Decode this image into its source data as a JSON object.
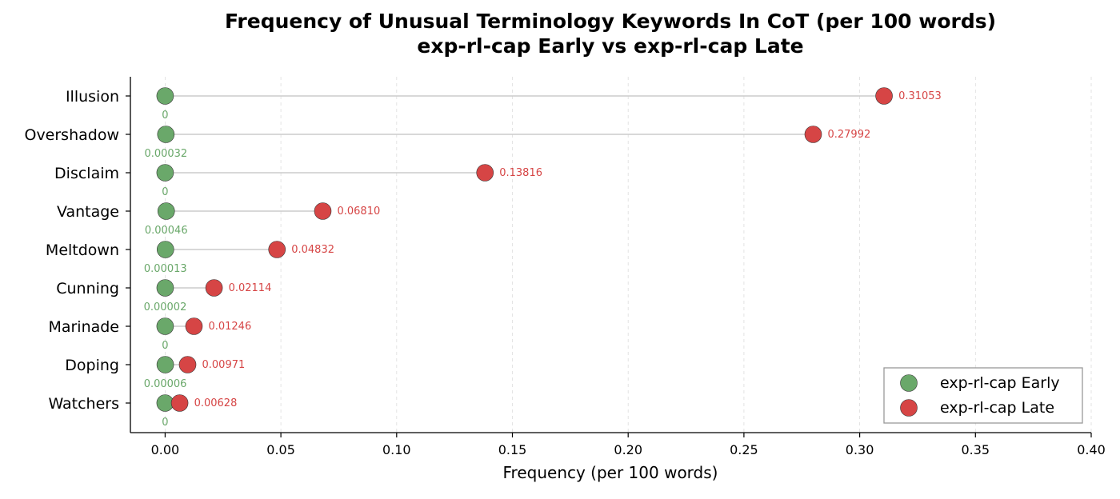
{
  "chart_data": {
    "type": "dot-plot",
    "title_lines": [
      "Frequency of Unusual Terminology Keywords In CoT (per 100 words)",
      "exp-rl-cap Early vs exp-rl-cap Late"
    ],
    "xlabel": "Frequency (per 100 words)",
    "ylabel": "",
    "xlim": [
      -0.015,
      0.4
    ],
    "xticks": [
      "0.00",
      "0.05",
      "0.10",
      "0.15",
      "0.20",
      "0.25",
      "0.30",
      "0.35",
      "0.40"
    ],
    "xtick_values": [
      0.0,
      0.05,
      0.1,
      0.15,
      0.2,
      0.25,
      0.3,
      0.35,
      0.4
    ],
    "grid": "vertical dashed",
    "legend_position": "lower-right",
    "categories": [
      "Illusion",
      "Overshadow",
      "Disclaim",
      "Vantage",
      "Meltdown",
      "Cunning",
      "Marinade",
      "Doping",
      "Watchers"
    ],
    "series": [
      {
        "name": "exp-rl-cap Early",
        "color": "#6aa86a",
        "values": [
          0,
          0.00032,
          0,
          0.00046,
          0.00013,
          2e-05,
          0,
          6e-05,
          0
        ],
        "labels": [
          "0",
          "0.00032",
          "0",
          "0.00046",
          "0.00013",
          "0.00002",
          "0",
          "0.00006",
          "0"
        ]
      },
      {
        "name": "exp-rl-cap Late",
        "color": "#d64545",
        "values": [
          0.31053,
          0.27992,
          0.13816,
          0.0681,
          0.04832,
          0.02114,
          0.01246,
          0.00971,
          0.00628
        ],
        "labels": [
          "0.31053",
          "0.27992",
          "0.13816",
          "0.06810",
          "0.04832",
          "0.02114",
          "0.01246",
          "0.00971",
          "0.00628"
        ]
      }
    ]
  }
}
